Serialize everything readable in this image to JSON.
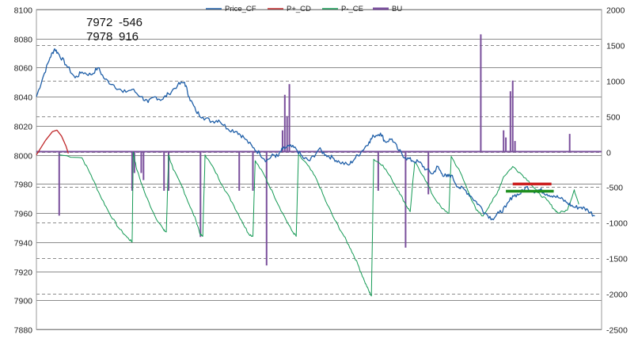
{
  "chart_data": {
    "type": "line",
    "legend_position": "top",
    "grid": true,
    "ylim_left": [
      7880,
      8100
    ],
    "ylim_right": [
      -2500,
      2000
    ],
    "left_ticks": [
      "8100",
      "8080",
      "8060",
      "8040",
      "8020",
      "8000",
      "7980",
      "7960",
      "7940",
      "7920",
      "7900",
      "7880"
    ],
    "right_ticks": [
      "2000",
      "1500",
      "1000",
      "500",
      "0",
      "-500",
      "-1000",
      "-1500",
      "-2000",
      "-2500"
    ],
    "annotations": [
      {
        "left": "7972",
        "right": "-546"
      },
      {
        "left": "7978",
        "right": "916"
      }
    ],
    "colors": {
      "price": "#1f5fa8",
      "pcd": "#c0292b",
      "pce": "#159a55",
      "bu": "#7a4f9c",
      "level_red": "#cc1f1f",
      "level_green": "#1f8f1f"
    },
    "series": [
      {
        "name": "Price_CF",
        "axis": "left",
        "points": [
          [
            0,
            8040
          ],
          [
            3,
            8054
          ],
          [
            6,
            8067
          ],
          [
            8,
            8073
          ],
          [
            10,
            8069
          ],
          [
            13,
            8062
          ],
          [
            17,
            8053
          ],
          [
            20,
            8057
          ],
          [
            24,
            8055
          ],
          [
            27,
            8060
          ],
          [
            30,
            8052
          ],
          [
            34,
            8048
          ],
          [
            38,
            8043
          ],
          [
            42,
            8045
          ],
          [
            46,
            8040
          ],
          [
            49,
            8036
          ],
          [
            52,
            8040
          ],
          [
            55,
            8038
          ],
          [
            58,
            8042
          ],
          [
            62,
            8048
          ],
          [
            65,
            8050
          ],
          [
            67,
            8040
          ],
          [
            70,
            8030
          ],
          [
            73,
            8026
          ],
          [
            77,
            8023
          ],
          [
            80,
            8024
          ],
          [
            84,
            8018
          ],
          [
            88,
            8016
          ],
          [
            91,
            8012
          ],
          [
            95,
            8005
          ],
          [
            98,
            8001
          ],
          [
            101,
            7996
          ],
          [
            104,
            8000
          ],
          [
            106,
            7999
          ],
          [
            108,
            8004
          ],
          [
            111,
            8006
          ],
          [
            114,
            8004
          ],
          [
            117,
            7998
          ],
          [
            120,
            7996
          ],
          [
            124,
            8004
          ],
          [
            127,
            8000
          ],
          [
            130,
            7998
          ],
          [
            133,
            7995
          ],
          [
            137,
            7993
          ],
          [
            140,
            7998
          ],
          [
            143,
            8003
          ],
          [
            146,
            8009
          ],
          [
            148,
            8013
          ],
          [
            151,
            8015
          ],
          [
            153,
            8009
          ],
          [
            156,
            8011
          ],
          [
            159,
            8003
          ],
          [
            162,
            7998
          ],
          [
            165,
            7996
          ],
          [
            168,
            7995
          ],
          [
            171,
            7990
          ],
          [
            174,
            7987
          ],
          [
            176,
            7992
          ],
          [
            178,
            7987
          ],
          [
            180,
            7985
          ],
          [
            182,
            7986
          ],
          [
            185,
            7978
          ],
          [
            188,
            7976
          ],
          [
            191,
            7971
          ],
          [
            194,
            7966
          ],
          [
            197,
            7960
          ],
          [
            200,
            7956
          ],
          [
            203,
            7960
          ],
          [
            206,
            7964
          ],
          [
            209,
            7972
          ],
          [
            212,
            7973
          ],
          [
            215,
            7978
          ],
          [
            218,
            7975
          ],
          [
            221,
            7976
          ],
          [
            224,
            7973
          ],
          [
            227,
            7972
          ],
          [
            230,
            7970
          ],
          [
            233,
            7967
          ],
          [
            236,
            7964
          ],
          [
            239,
            7964
          ],
          [
            242,
            7962
          ],
          [
            245,
            7958
          ]
        ]
      },
      {
        "name": "P+_CD",
        "axis": "left",
        "points": [
          [
            0,
            8000
          ],
          [
            4,
            8010
          ],
          [
            7,
            8016
          ],
          [
            9,
            8017
          ],
          [
            11,
            8013
          ],
          [
            13,
            8006
          ],
          [
            14,
            8001
          ]
        ]
      },
      {
        "name": "P-_CE",
        "axis": "left",
        "points": [
          [
            10,
            8000
          ],
          [
            20,
            7998
          ],
          [
            24,
            7986
          ],
          [
            28,
            7972
          ],
          [
            32,
            7960
          ],
          [
            36,
            7950
          ],
          [
            40,
            7943
          ],
          [
            42,
            7940
          ],
          [
            42.5,
            8002
          ],
          [
            44,
            7990
          ],
          [
            48,
            7972
          ],
          [
            52,
            7958
          ],
          [
            56,
            7948
          ],
          [
            57,
            7947
          ],
          [
            58,
            8000
          ],
          [
            60,
            7990
          ],
          [
            64,
            7978
          ],
          [
            67,
            7966
          ],
          [
            70,
            7955
          ],
          [
            72,
            7945
          ],
          [
            73,
            7944
          ],
          [
            74,
            8000
          ],
          [
            78,
            7990
          ],
          [
            82,
            7978
          ],
          [
            86,
            7967
          ],
          [
            90,
            7955
          ],
          [
            93,
            7946
          ],
          [
            95,
            7944
          ],
          [
            96,
            7996
          ],
          [
            100,
            7986
          ],
          [
            104,
            7973
          ],
          [
            108,
            7960
          ],
          [
            112,
            7948
          ],
          [
            114,
            7944
          ],
          [
            115,
            8000
          ],
          [
            119,
            7993
          ],
          [
            123,
            7983
          ],
          [
            127,
            7968
          ],
          [
            131,
            7955
          ],
          [
            135,
            7944
          ],
          [
            138,
            7935
          ],
          [
            141,
            7925
          ],
          [
            144,
            7913
          ],
          [
            146,
            7906
          ],
          [
            147,
            7903
          ],
          [
            148,
            7997
          ],
          [
            152,
            7993
          ],
          [
            156,
            7983
          ],
          [
            159,
            7975
          ],
          [
            162,
            7966
          ],
          [
            164,
            7961
          ],
          [
            166,
            7995
          ],
          [
            170,
            7985
          ],
          [
            174,
            7972
          ],
          [
            178,
            7963
          ],
          [
            181,
            7960
          ],
          [
            182,
            7999
          ],
          [
            186,
            7988
          ],
          [
            190,
            7973
          ],
          [
            193,
            7962
          ],
          [
            196,
            7958
          ],
          [
            199,
            7966
          ],
          [
            202,
            7973
          ],
          [
            205,
            7985
          ],
          [
            209,
            7992
          ],
          [
            212,
            7988
          ],
          [
            216,
            7982
          ],
          [
            220,
            7974
          ],
          [
            224,
            7969
          ],
          [
            227,
            7963
          ],
          [
            229,
            7960
          ],
          [
            233,
            7962
          ],
          [
            236,
            7976
          ],
          [
            238,
            7966
          ]
        ]
      },
      {
        "name": "BU",
        "axis": "right",
        "bars": [
          [
            10,
            -900
          ],
          [
            42,
            -550
          ],
          [
            43,
            -300
          ],
          [
            46,
            -300
          ],
          [
            47,
            -400
          ],
          [
            56,
            -550
          ],
          [
            58,
            -550
          ],
          [
            72,
            -1200
          ],
          [
            89,
            -550
          ],
          [
            95,
            -550
          ],
          [
            101,
            -1600
          ],
          [
            108,
            300
          ],
          [
            109,
            800
          ],
          [
            110,
            500
          ],
          [
            111,
            950
          ],
          [
            150,
            -550
          ],
          [
            162,
            -1350
          ],
          [
            172,
            -600
          ],
          [
            195,
            1650
          ],
          [
            205,
            300
          ],
          [
            206,
            200
          ],
          [
            208,
            850
          ],
          [
            209,
            1000
          ],
          [
            210,
            150
          ],
          [
            234,
            250
          ]
        ]
      }
    ],
    "level_lines": [
      {
        "y": 7975,
        "x_from": 206,
        "x_to": 227,
        "color": "green"
      },
      {
        "y": 7980,
        "x_from": 209,
        "x_to": 226,
        "color": "red"
      }
    ]
  }
}
